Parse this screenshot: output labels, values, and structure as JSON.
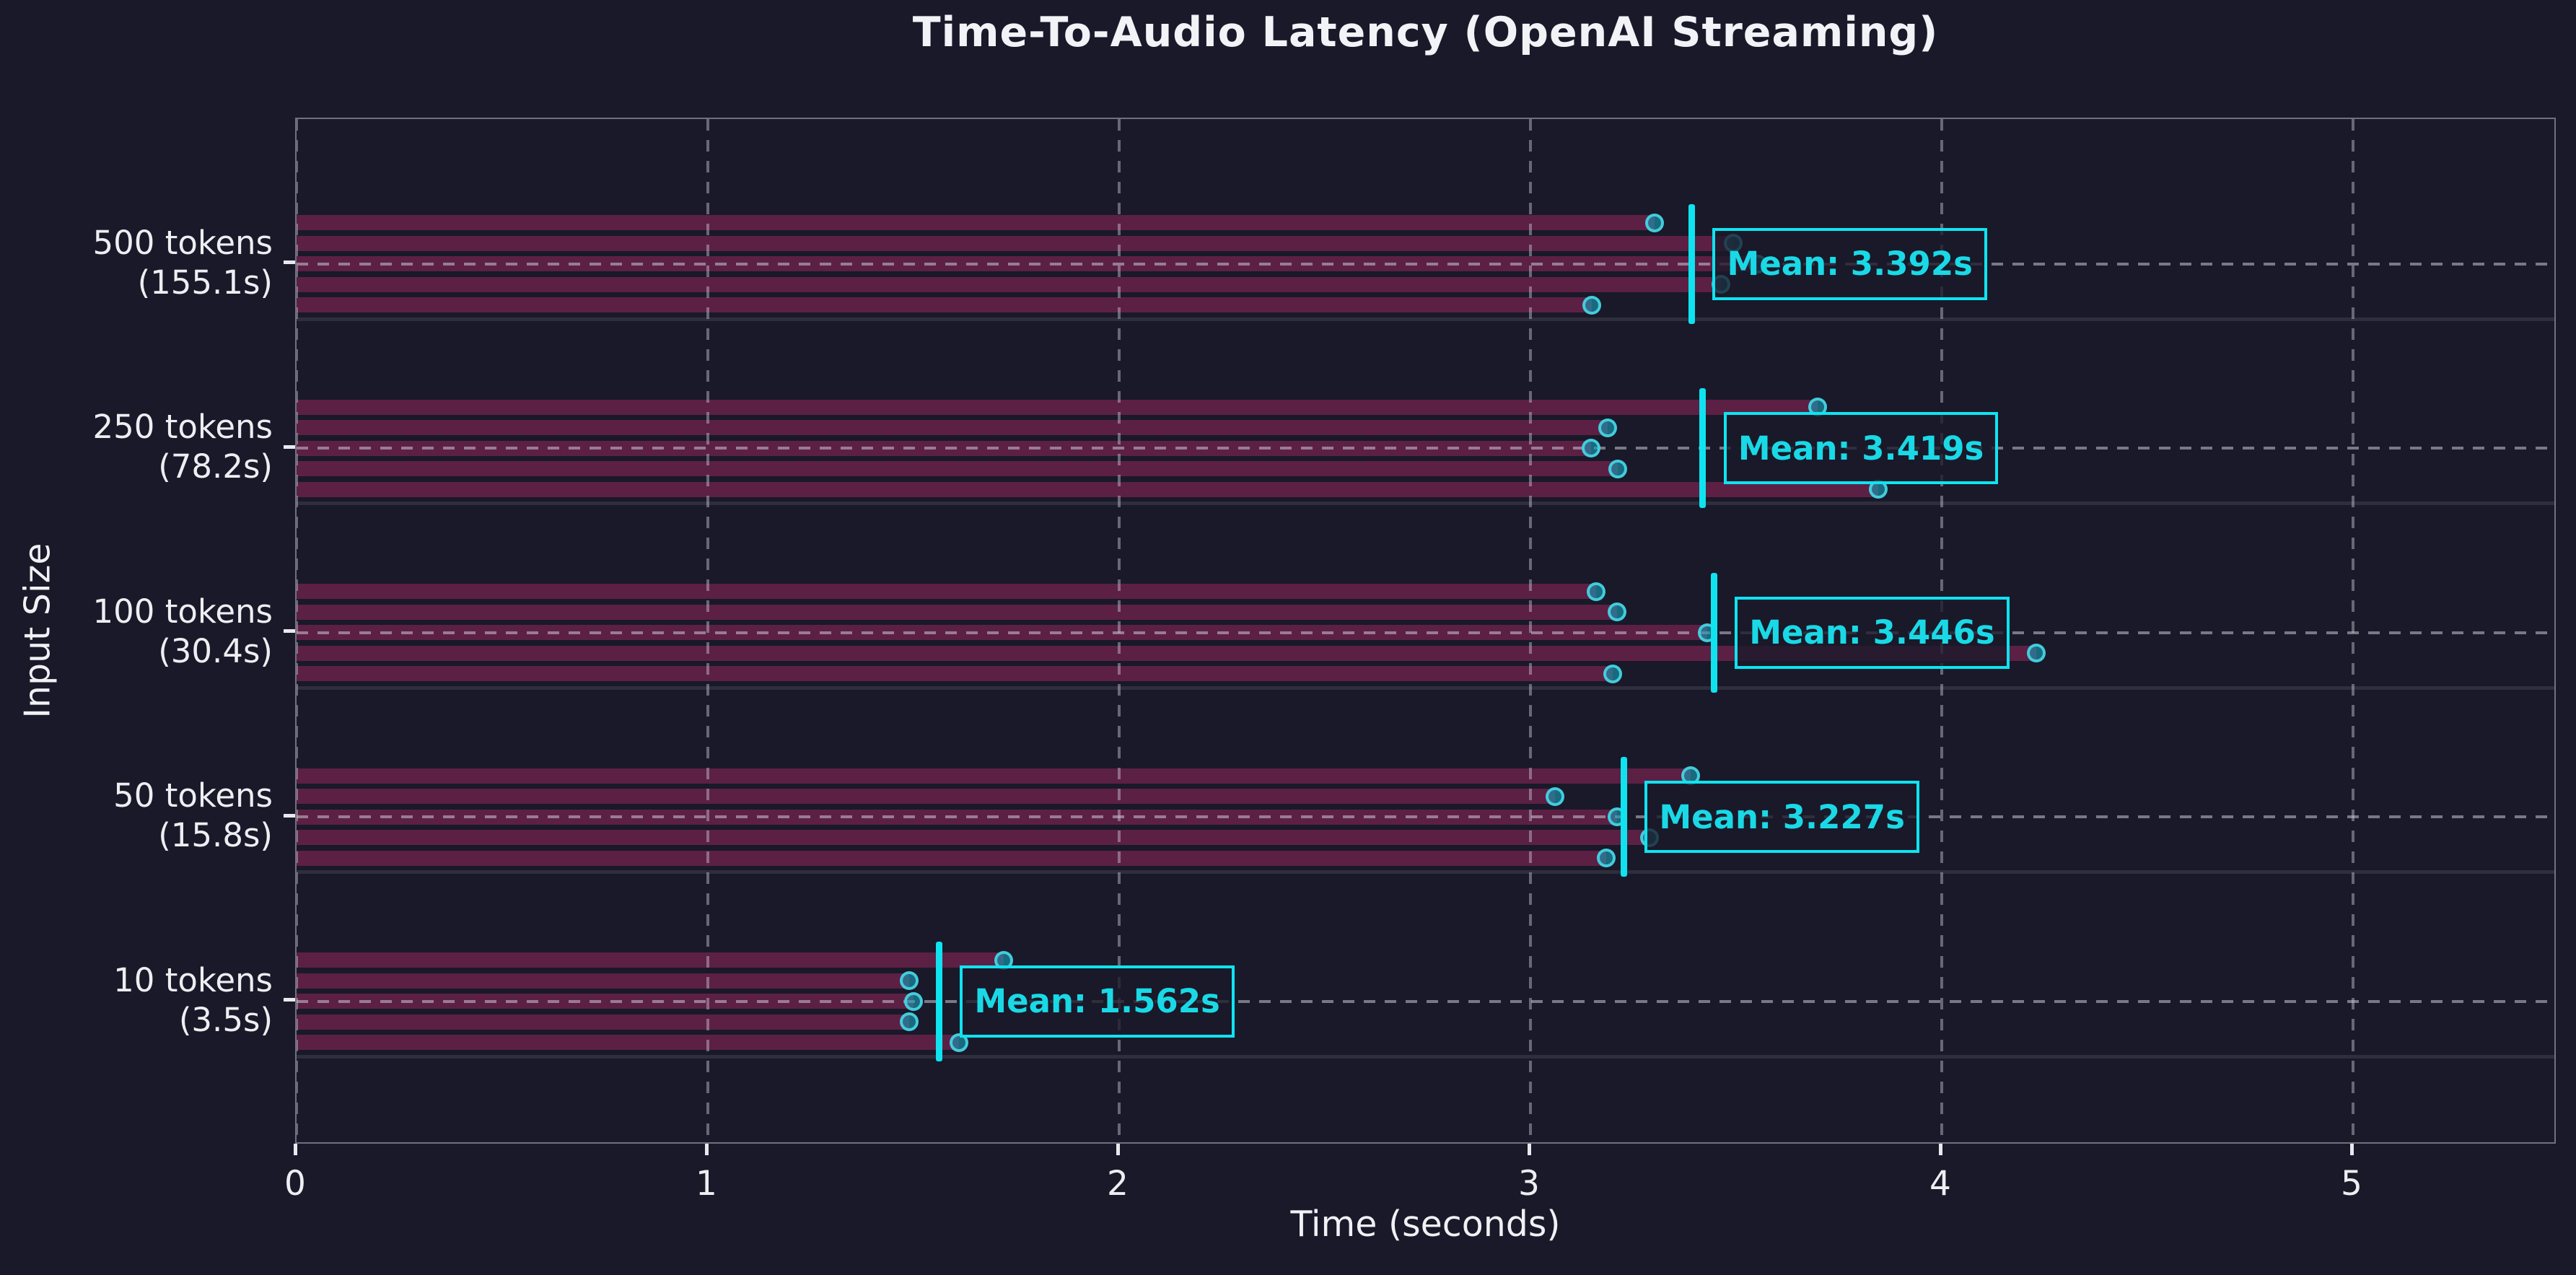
{
  "title": "Time-To-Audio Latency (OpenAI Streaming)",
  "chart_data": {
    "type": "bar",
    "orientation": "horizontal",
    "title": "Time-To-Audio Latency (OpenAI Streaming)",
    "xlabel": "Time (seconds)",
    "ylabel": "Input Size",
    "xlim": [
      0,
      5.5
    ],
    "x_ticks": [
      0,
      1,
      2,
      3,
      4,
      5
    ],
    "grid": "dashed, vertical at each second and horizontal through each category center",
    "legend": "none",
    "groups": [
      {
        "label": "500 tokens",
        "sublabel": "(155.1s)",
        "runs": [
          3.302,
          3.493,
          3.553,
          3.463,
          3.149
        ],
        "mean": 3.392,
        "mean_label": "Mean: 3.392s"
      },
      {
        "label": "250 tokens",
        "sublabel": "(78.2s)",
        "runs": [
          3.699,
          3.188,
          3.148,
          3.212,
          3.845
        ],
        "mean": 3.419,
        "mean_label": "Mean: 3.419s"
      },
      {
        "label": "100 tokens",
        "sublabel": "(30.4s)",
        "runs": [
          3.16,
          3.21,
          3.43,
          4.23,
          3.2
        ],
        "mean": 3.446,
        "mean_label": "Mean: 3.446s"
      },
      {
        "label": "50 tokens",
        "sublabel": "(15.8s)",
        "runs": [
          3.39,
          3.06,
          3.21,
          3.29,
          3.185
        ],
        "mean": 3.227,
        "mean_label": "Mean: 3.227s"
      },
      {
        "label": "10 tokens",
        "sublabel": "(3.5s)",
        "runs": [
          1.72,
          1.49,
          1.5,
          1.49,
          1.61
        ],
        "mean": 1.562,
        "mean_label": "Mean: 1.562s"
      }
    ],
    "colors": {
      "background": "#191929",
      "bar": "#5d2045",
      "mean_line": "#0fe3f0",
      "mean_label_text": "#1ad9e6",
      "dot_ring": "rgba(70,210,224,0.95)",
      "dot_fill": "rgba(23,160,185,0.6)",
      "grid": "rgba(200,200,210,0.5)",
      "spine": "#70707e",
      "separator": "#2e2e3d",
      "text": "#f0f0f5"
    }
  }
}
